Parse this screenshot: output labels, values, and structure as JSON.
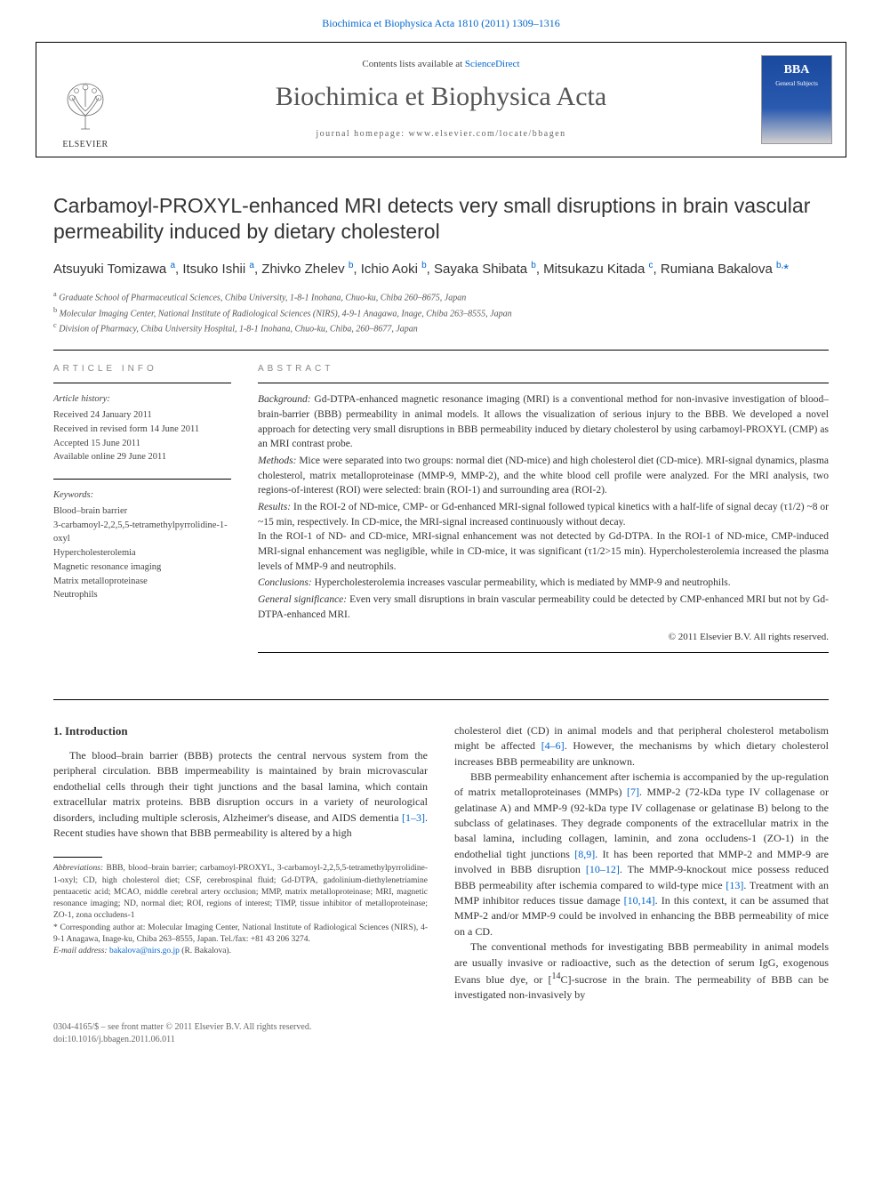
{
  "top_link": {
    "text": "Biochimica et Biophysica Acta 1810 (2011) 1309–1316",
    "color": "#0066cc"
  },
  "masthead": {
    "contents_prefix": "Contents lists available at ",
    "contents_link": "ScienceDirect",
    "journal_name": "Biochimica et Biophysica Acta",
    "homepage_prefix": "journal homepage: ",
    "homepage": "www.elsevier.com/locate/bbagen",
    "publisher": "ELSEVIER",
    "cover_label": "BBA",
    "cover_sub": "General Subjects"
  },
  "article": {
    "title": "Carbamoyl-PROXYL-enhanced MRI detects very small disruptions in brain vascular permeability induced by dietary cholesterol",
    "authors_html": "Atsuyuki Tomizawa <sup>a</sup>, Itsuko Ishii <sup>a</sup>, Zhivko Zhelev <sup>b</sup>, Ichio Aoki <sup>b</sup>, Sayaka Shibata <sup>b</sup>, Mitsukazu Kitada <sup>c</sup>, Rumiana Bakalova <sup>b,</sup><span class=\"star\">*</span>",
    "affiliations": [
      {
        "sup": "a",
        "text": "Graduate School of Pharmaceutical Sciences, Chiba University, 1-8-1 Inohana, Chuo-ku, Chiba 260–8675, Japan"
      },
      {
        "sup": "b",
        "text": "Molecular Imaging Center, National Institute of Radiological Sciences (NIRS), 4-9-1 Anagawa, Inage, Chiba 263–8555, Japan"
      },
      {
        "sup": "c",
        "text": "Division of Pharmacy, Chiba University Hospital, 1-8-1 Inohana, Chuo-ku, Chiba, 260–8677, Japan"
      }
    ]
  },
  "info": {
    "heading": "ARTICLE INFO",
    "history_label": "Article history:",
    "history": [
      "Received 24 January 2011",
      "Received in revised form 14 June 2011",
      "Accepted 15 June 2011",
      "Available online 29 June 2011"
    ],
    "keywords_label": "Keywords:",
    "keywords": [
      "Blood–brain barrier",
      "3-carbamoyl-2,2,5,5-tetramethylpyrrolidine-1-oxyl",
      "Hypercholesterolemia",
      "Magnetic resonance imaging",
      "Matrix metalloproteinase",
      "Neutrophils"
    ]
  },
  "abstract": {
    "heading": "ABSTRACT",
    "sections": [
      {
        "label": "Background:",
        "text": "Gd-DTPA-enhanced magnetic resonance imaging (MRI) is a conventional method for non-invasive investigation of blood–brain-barrier (BBB) permeability in animal models. It allows the visualization of serious injury to the BBB. We developed a novel approach for detecting very small disruptions in BBB permeability induced by dietary cholesterol by using carbamoyl-PROXYL (CMP) as an MRI contrast probe."
      },
      {
        "label": "Methods:",
        "text": "Mice were separated into two groups: normal diet (ND-mice) and high cholesterol diet (CD-mice). MRI-signal dynamics, plasma cholesterol, matrix metalloproteinase (MMP-9, MMP-2), and the white blood cell profile were analyzed. For the MRI analysis, two regions-of-interest (ROI) were selected: brain (ROI-1) and surrounding area (ROI-2)."
      },
      {
        "label": "Results:",
        "text": "In the ROI-2 of ND-mice, CMP- or Gd-enhanced MRI-signal followed typical kinetics with a half-life of signal decay (τ1/2) ~8 or ~15 min, respectively. In CD-mice, the MRI-signal increased continuously without decay.\nIn the ROI-1 of ND- and CD-mice, MRI-signal enhancement was not detected by Gd-DTPA. In the ROI-1 of ND-mice, CMP-induced MRI-signal enhancement was negligible, while in CD-mice, it was significant (τ1/2>15 min). Hypercholesterolemia increased the plasma levels of MMP-9 and neutrophils."
      },
      {
        "label": "Conclusions:",
        "text": "Hypercholesterolemia increases vascular permeability, which is mediated by MMP-9 and neutrophils."
      },
      {
        "label": "General significance:",
        "text": "Even very small disruptions in brain vascular permeability could be detected by CMP-enhanced MRI but not by Gd-DTPA-enhanced MRI."
      }
    ],
    "copyright": "© 2011 Elsevier B.V. All rights reserved."
  },
  "body": {
    "intro_heading": "1. Introduction",
    "left_para": "The blood–brain barrier (BBB) protects the central nervous system from the peripheral circulation. BBB impermeability is maintained by brain microvascular endothelial cells through their tight junctions and the basal lamina, which contain extracellular matrix proteins. BBB disruption occurs in a variety of neurological disorders, including multiple sclerosis, Alzheimer's disease, and AIDS dementia [1–3]. Recent studies have shown that BBB permeability is altered by a high",
    "right_para1": "cholesterol diet (CD) in animal models and that peripheral cholesterol metabolism might be affected [4–6]. However, the mechanisms by which dietary cholesterol increases BBB permeability are unknown.",
    "right_para2": "BBB permeability enhancement after ischemia is accompanied by the up-regulation of matrix metalloproteinases (MMPs) [7]. MMP-2 (72-kDa type IV collagenase or gelatinase A) and MMP-9 (92-kDa type IV collagenase or gelatinase B) belong to the subclass of gelatinases. They degrade components of the extracellular matrix in the basal lamina, including collagen, laminin, and zona occludens-1 (ZO-1) in the endothelial tight junctions [8,9]. It has been reported that MMP-2 and MMP-9 are involved in BBB disruption [10–12]. The MMP-9-knockout mice possess reduced BBB permeability after ischemia compared to wild-type mice [13]. Treatment with an MMP inhibitor reduces tissue damage [10,14]. In this context, it can be assumed that MMP-2 and/or MMP-9 could be involved in enhancing the BBB permeability of mice on a CD.",
    "right_para3": "The conventional methods for investigating BBB permeability in animal models are usually invasive or radioactive, such as the detection of serum IgG, exogenous Evans blue dye, or [14C]-sucrose in the brain. The permeability of BBB can be investigated non-invasively by"
  },
  "footnotes": {
    "abbrev_label": "Abbreviations:",
    "abbrev": "BBB, blood–brain barrier; carbamoyl-PROXYL, 3-carbamoyl-2,2,5,5-tetramethylpyrrolidine-1-oxyl; CD, high cholesterol diet; CSF, cerebrospinal fluid; Gd-DTPA, gadolinium-diethylenetriamine pentaacetic acid; MCAO, middle cerebral artery occlusion; MMP, matrix metalloproteinase; MRI, magnetic resonance imaging; ND, normal diet; ROI, regions of interest; TIMP, tissue inhibitor of metalloproteinase; ZO-1, zona occludens-1",
    "corr_label": "* Corresponding author at:",
    "corr": "Molecular Imaging Center, National Institute of Radiological Sciences (NIRS), 4-9-1 Anagawa, Inage-ku, Chiba 263–8555, Japan. Tel./fax: +81 43 206 3274.",
    "email_label": "E-mail address:",
    "email": "bakalova@nirs.go.jp",
    "email_suffix": "(R. Bakalova)."
  },
  "footer": {
    "left1": "0304-4165/$ – see front matter © 2011 Elsevier B.V. All rights reserved.",
    "left2": "doi:10.1016/j.bbagen.2011.06.011"
  },
  "refs": {
    "r1": "[1–3]",
    "r4": "[4–6]",
    "r7": "[7]",
    "r8": "[8,9]",
    "r10": "[10–12]",
    "r13": "[13]",
    "r14": "[10,14]"
  }
}
